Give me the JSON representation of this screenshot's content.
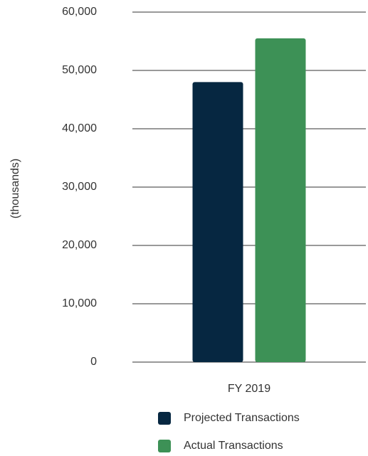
{
  "chart_data": {
    "type": "bar",
    "y_label": "(thousands)",
    "categories": [
      "FY 2019"
    ],
    "series": [
      {
        "name": "Projected Transactions",
        "color": "#062741",
        "values": [
          48000
        ]
      },
      {
        "name": "Actual Transactions",
        "color": "#3d9156",
        "values": [
          55500
        ]
      }
    ],
    "ylim": [
      0,
      60000
    ],
    "yticks": [
      0,
      {
        "value": 10000,
        "label": "10,000"
      },
      {
        "value": 20000,
        "label": "20,000"
      },
      {
        "value": 30000,
        "label": "30,000"
      },
      {
        "value": 40000,
        "label": "40,000"
      },
      {
        "value": 50000,
        "label": "50,000"
      },
      {
        "value": 60000,
        "label": "60,000"
      }
    ],
    "grid": true
  }
}
